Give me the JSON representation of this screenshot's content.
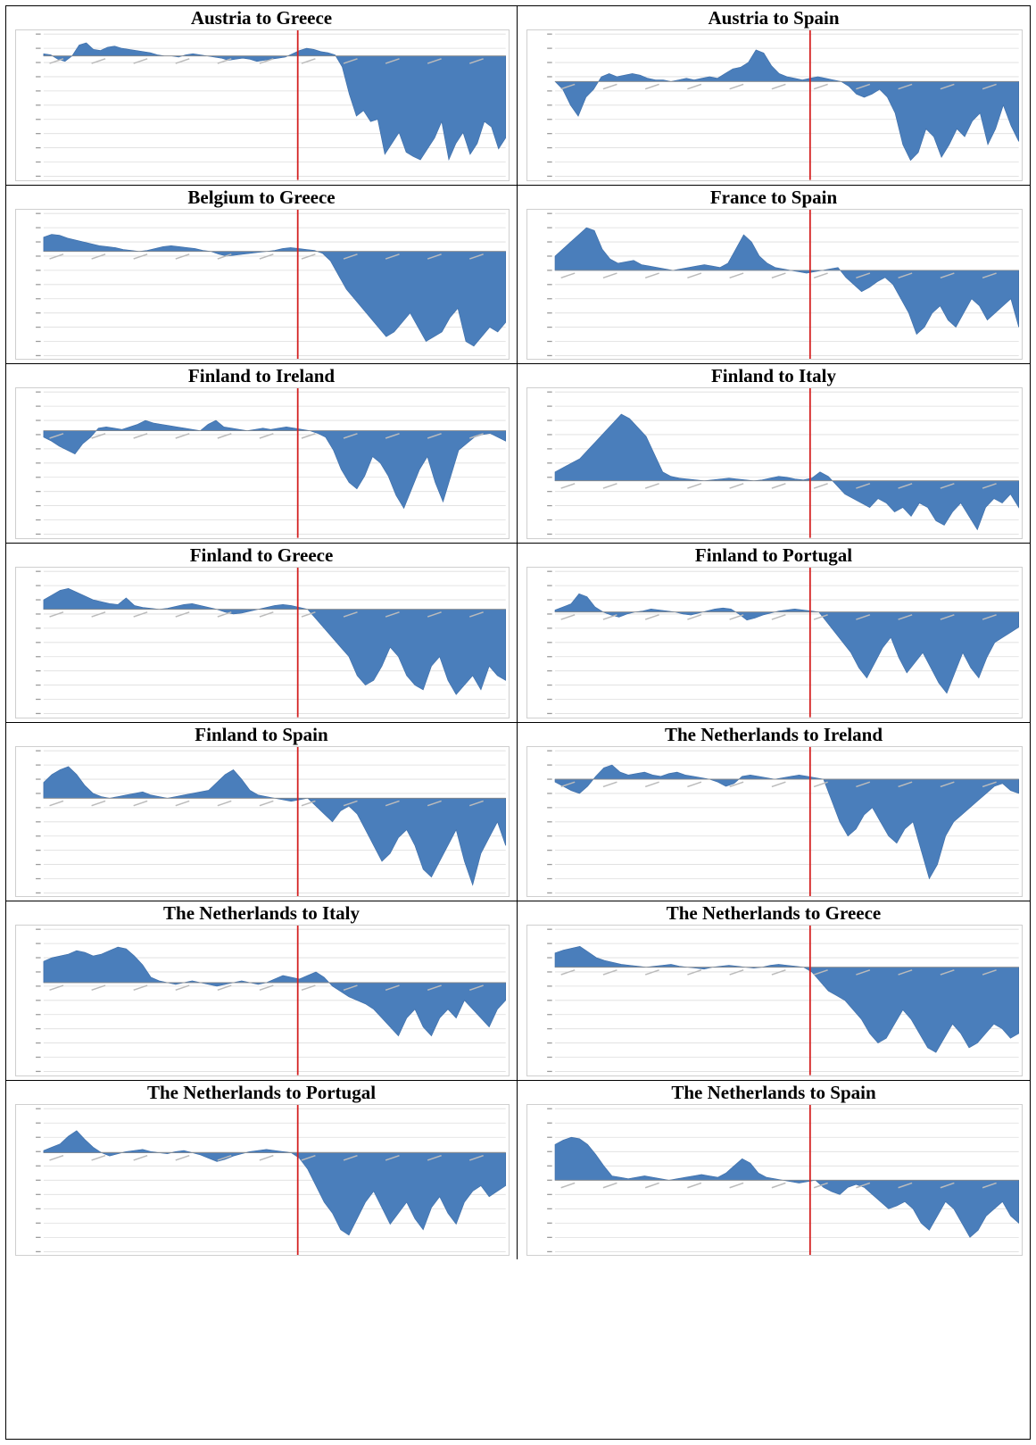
{
  "chart_data": [
    {
      "type": "area",
      "title": "Austria to Greece",
      "ylim": [
        -110,
        20
      ],
      "zero_level": 0.16,
      "break_x": 0.55,
      "neg_seg": [
        0.55,
        1.0
      ],
      "series": [
        {
          "values": [
            2,
            1,
            -3,
            -5,
            0,
            10,
            12,
            6,
            5,
            8,
            9,
            7,
            6,
            5,
            4,
            3,
            1,
            0,
            0,
            -1,
            1,
            2,
            1,
            0,
            -1,
            -2,
            -4,
            -3,
            -2,
            -3,
            -5,
            -4,
            -3,
            -2,
            -1,
            2,
            5,
            7,
            6,
            4,
            3,
            1,
            -10,
            -35,
            -55,
            -50,
            -60,
            -58,
            -90,
            -80,
            -70,
            -88,
            -92,
            -95,
            -85,
            -75,
            -60,
            -95,
            -80,
            -70,
            -90,
            -80,
            -60,
            -65,
            -85,
            -75
          ]
        }
      ]
    },
    {
      "type": "area",
      "title": "Austria to Spain",
      "ylim": [
        -60,
        30
      ],
      "zero_level": 0.33,
      "break_x": 0.55,
      "neg_seg": [
        0.55,
        1.0
      ],
      "series": [
        {
          "values": [
            0,
            -5,
            -15,
            -22,
            -10,
            -5,
            3,
            5,
            3,
            4,
            5,
            4,
            2,
            1,
            1,
            0,
            1,
            2,
            1,
            2,
            3,
            2,
            5,
            8,
            9,
            12,
            20,
            18,
            10,
            5,
            3,
            2,
            1,
            2,
            3,
            2,
            1,
            0,
            -3,
            -8,
            -10,
            -8,
            -5,
            -10,
            -20,
            -40,
            -50,
            -45,
            -30,
            -35,
            -48,
            -40,
            -30,
            -35,
            -25,
            -20,
            -40,
            -30,
            -15,
            -28,
            -38
          ]
        }
      ]
    },
    {
      "type": "area",
      "title": "Belgium to Greece",
      "ylim": [
        -110,
        40
      ],
      "zero_level": 0.27,
      "break_x": 0.55,
      "neg_seg": [
        0.55,
        1.0
      ],
      "series": [
        {
          "values": [
            15,
            18,
            17,
            14,
            12,
            10,
            8,
            6,
            5,
            4,
            2,
            1,
            0,
            1,
            3,
            5,
            6,
            5,
            4,
            3,
            1,
            0,
            -3,
            -5,
            -4,
            -3,
            -2,
            -1,
            0,
            1,
            3,
            4,
            3,
            2,
            1,
            -2,
            -10,
            -25,
            -40,
            -50,
            -60,
            -70,
            -80,
            -90,
            -85,
            -75,
            -65,
            -80,
            -95,
            -90,
            -85,
            -70,
            -60,
            -95,
            -100,
            -90,
            -80,
            -85,
            -75
          ]
        }
      ]
    },
    {
      "type": "area",
      "title": "France to Spain",
      "ylim": [
        -60,
        40
      ],
      "zero_level": 0.4,
      "break_x": 0.55,
      "neg_seg": [
        0.55,
        1.0
      ],
      "series": [
        {
          "values": [
            10,
            15,
            20,
            25,
            30,
            28,
            15,
            8,
            5,
            6,
            7,
            4,
            3,
            2,
            1,
            0,
            1,
            2,
            3,
            4,
            3,
            2,
            5,
            15,
            25,
            20,
            10,
            5,
            2,
            1,
            0,
            -1,
            -2,
            -1,
            0,
            1,
            2,
            -5,
            -10,
            -15,
            -12,
            -8,
            -5,
            -10,
            -20,
            -30,
            -45,
            -40,
            -30,
            -25,
            -35,
            -40,
            -30,
            -20,
            -25,
            -35,
            -30,
            -25,
            -20,
            -40
          ]
        }
      ]
    },
    {
      "type": "area",
      "title": "Finland to Ireland",
      "ylim": [
        -80,
        30
      ],
      "zero_level": 0.3,
      "break_x": 0.55,
      "neg_seg": [
        0.55,
        1.0
      ],
      "series": [
        {
          "values": [
            -5,
            -8,
            -12,
            -15,
            -18,
            -10,
            -5,
            2,
            3,
            2,
            1,
            3,
            5,
            8,
            6,
            5,
            4,
            3,
            2,
            1,
            0,
            5,
            8,
            3,
            2,
            1,
            0,
            1,
            2,
            1,
            2,
            3,
            2,
            1,
            0,
            -2,
            -5,
            -15,
            -30,
            -40,
            -45,
            -35,
            -20,
            -25,
            -35,
            -50,
            -60,
            -45,
            -30,
            -20,
            -40,
            -55,
            -35,
            -15,
            -10,
            -5,
            -3,
            -2,
            -5,
            -8
          ]
        }
      ]
    },
    {
      "type": "area",
      "title": "Finland to Italy",
      "ylim": [
        -60,
        100
      ],
      "zero_level": 0.4,
      "break_x": 0.55,
      "neg_seg": [
        0.55,
        1.0
      ],
      "series": [
        {
          "values": [
            10,
            15,
            20,
            25,
            35,
            45,
            55,
            65,
            75,
            70,
            60,
            50,
            30,
            10,
            5,
            3,
            2,
            1,
            0,
            1,
            2,
            3,
            2,
            1,
            0,
            1,
            3,
            5,
            4,
            2,
            1,
            3,
            10,
            5,
            -5,
            -15,
            -20,
            -25,
            -30,
            -20,
            -25,
            -35,
            -30,
            -40,
            -25,
            -30,
            -45,
            -50,
            -35,
            -25,
            -40,
            -55,
            -30,
            -20,
            -25,
            -15,
            -30
          ]
        }
      ]
    },
    {
      "type": "area",
      "title": "Finland to Greece",
      "ylim": [
        -110,
        40
      ],
      "zero_level": 0.27,
      "break_x": 0.55,
      "neg_seg": [
        0.55,
        1.0
      ],
      "series": [
        {
          "values": [
            10,
            15,
            20,
            22,
            18,
            14,
            10,
            8,
            6,
            5,
            12,
            4,
            2,
            1,
            0,
            1,
            3,
            5,
            6,
            4,
            2,
            0,
            -3,
            -5,
            -4,
            -2,
            0,
            2,
            4,
            5,
            4,
            2,
            0,
            -10,
            -20,
            -30,
            -40,
            -50,
            -70,
            -80,
            -75,
            -60,
            -40,
            -50,
            -70,
            -80,
            -85,
            -60,
            -50,
            -75,
            -90,
            -80,
            -70,
            -85,
            -60,
            -70,
            -75
          ]
        }
      ]
    },
    {
      "type": "area",
      "title": "Finland to Portugal",
      "ylim": [
        -100,
        40
      ],
      "zero_level": 0.3,
      "break_x": 0.55,
      "neg_seg": [
        0.55,
        1.0
      ],
      "series": [
        {
          "values": [
            2,
            5,
            8,
            18,
            15,
            5,
            0,
            -3,
            -5,
            -2,
            0,
            1,
            3,
            2,
            1,
            0,
            -2,
            -3,
            -1,
            1,
            3,
            4,
            3,
            -2,
            -8,
            -6,
            -3,
            -1,
            1,
            2,
            3,
            2,
            1,
            0,
            -10,
            -20,
            -30,
            -40,
            -55,
            -65,
            -50,
            -35,
            -25,
            -45,
            -60,
            -50,
            -40,
            -55,
            -70,
            -80,
            -60,
            -40,
            -55,
            -65,
            -45,
            -30,
            -25,
            -20,
            -15
          ]
        }
      ]
    },
    {
      "type": "area",
      "title": "Finland to Spain",
      "ylim": [
        -60,
        30
      ],
      "zero_level": 0.33,
      "break_x": 0.55,
      "neg_seg": [
        0.55,
        1.0
      ],
      "series": [
        {
          "values": [
            10,
            15,
            18,
            20,
            15,
            8,
            3,
            1,
            0,
            1,
            2,
            3,
            4,
            2,
            1,
            0,
            1,
            2,
            3,
            4,
            5,
            10,
            15,
            18,
            12,
            5,
            2,
            1,
            0,
            -1,
            -2,
            -1,
            0,
            -5,
            -10,
            -15,
            -8,
            -5,
            -10,
            -20,
            -30,
            -40,
            -35,
            -25,
            -20,
            -30,
            -45,
            -50,
            -40,
            -30,
            -20,
            -40,
            -55,
            -35,
            -25,
            -15,
            -30
          ]
        }
      ]
    },
    {
      "type": "area",
      "title": "The Netherlands to Ireland",
      "ylim": [
        -80,
        20
      ],
      "zero_level": 0.25,
      "break_x": 0.55,
      "neg_seg": [
        0.55,
        1.0
      ],
      "series": [
        {
          "values": [
            -2,
            -5,
            -8,
            -10,
            -5,
            2,
            8,
            10,
            5,
            3,
            4,
            5,
            3,
            2,
            4,
            5,
            3,
            2,
            1,
            0,
            -2,
            -5,
            -3,
            2,
            3,
            2,
            1,
            0,
            1,
            2,
            3,
            2,
            1,
            0,
            -15,
            -30,
            -40,
            -35,
            -25,
            -20,
            -30,
            -40,
            -45,
            -35,
            -30,
            -50,
            -70,
            -60,
            -40,
            -30,
            -25,
            -20,
            -15,
            -10,
            -5,
            -3,
            -8,
            -10
          ]
        }
      ]
    },
    {
      "type": "area",
      "title": "The Netherlands to Italy",
      "ylim": [
        -50,
        30
      ],
      "zero_level": 0.48,
      "break_x": 0.55,
      "neg_seg": [
        0.55,
        1.0
      ],
      "series": [
        {
          "values": [
            12,
            14,
            15,
            16,
            18,
            17,
            15,
            16,
            18,
            20,
            19,
            15,
            10,
            3,
            1,
            0,
            -1,
            0,
            1,
            0,
            -1,
            -2,
            -1,
            0,
            1,
            0,
            -1,
            0,
            2,
            4,
            3,
            2,
            4,
            6,
            3,
            -2,
            -5,
            -8,
            -10,
            -12,
            -15,
            -20,
            -25,
            -30,
            -20,
            -15,
            -25,
            -30,
            -20,
            -15,
            -20,
            -10,
            -15,
            -20,
            -25,
            -15,
            -10
          ]
        }
      ]
    },
    {
      "type": "area",
      "title": "The Netherlands to Greece",
      "ylim": [
        -110,
        40
      ],
      "zero_level": 0.27,
      "break_x": 0.55,
      "neg_seg": [
        0.55,
        1.0
      ],
      "series": [
        {
          "values": [
            15,
            18,
            20,
            22,
            16,
            10,
            7,
            5,
            3,
            2,
            1,
            0,
            1,
            2,
            3,
            1,
            0,
            -1,
            -2,
            0,
            1,
            2,
            1,
            0,
            -1,
            0,
            2,
            3,
            2,
            1,
            0,
            -5,
            -15,
            -25,
            -30,
            -35,
            -45,
            -55,
            -70,
            -80,
            -75,
            -60,
            -45,
            -55,
            -70,
            -85,
            -90,
            -75,
            -60,
            -70,
            -85,
            -80,
            -70,
            -60,
            -65,
            -75,
            -70
          ]
        }
      ]
    },
    {
      "type": "area",
      "title": "The Netherlands to Portugal",
      "ylim": [
        -90,
        40
      ],
      "zero_level": 0.3,
      "break_x": 0.55,
      "neg_seg": [
        0.55,
        1.0
      ],
      "series": [
        {
          "values": [
            2,
            5,
            8,
            15,
            20,
            12,
            5,
            0,
            -3,
            -1,
            1,
            2,
            3,
            1,
            0,
            -1,
            1,
            2,
            0,
            -2,
            -5,
            -8,
            -6,
            -3,
            -1,
            1,
            2,
            3,
            2,
            1,
            0,
            -5,
            -15,
            -30,
            -45,
            -55,
            -70,
            -75,
            -60,
            -45,
            -35,
            -50,
            -65,
            -55,
            -45,
            -60,
            -70,
            -50,
            -40,
            -55,
            -65,
            -45,
            -35,
            -30,
            -40,
            -35,
            -30
          ]
        }
      ]
    },
    {
      "type": "area",
      "title": "The Netherlands to Spain",
      "ylim": [
        -50,
        50
      ],
      "zero_level": 0.5,
      "break_x": 0.55,
      "neg_seg": [
        0.55,
        1.0
      ],
      "series": [
        {
          "values": [
            25,
            28,
            30,
            29,
            25,
            18,
            10,
            3,
            2,
            1,
            2,
            3,
            2,
            1,
            0,
            1,
            2,
            3,
            4,
            3,
            2,
            5,
            10,
            15,
            12,
            5,
            2,
            1,
            0,
            -1,
            -2,
            -1,
            0,
            -5,
            -8,
            -10,
            -5,
            -3,
            -5,
            -10,
            -15,
            -20,
            -18,
            -15,
            -20,
            -30,
            -35,
            -25,
            -15,
            -20,
            -30,
            -40,
            -35,
            -25,
            -20,
            -15,
            -25,
            -30
          ]
        }
      ]
    }
  ]
}
